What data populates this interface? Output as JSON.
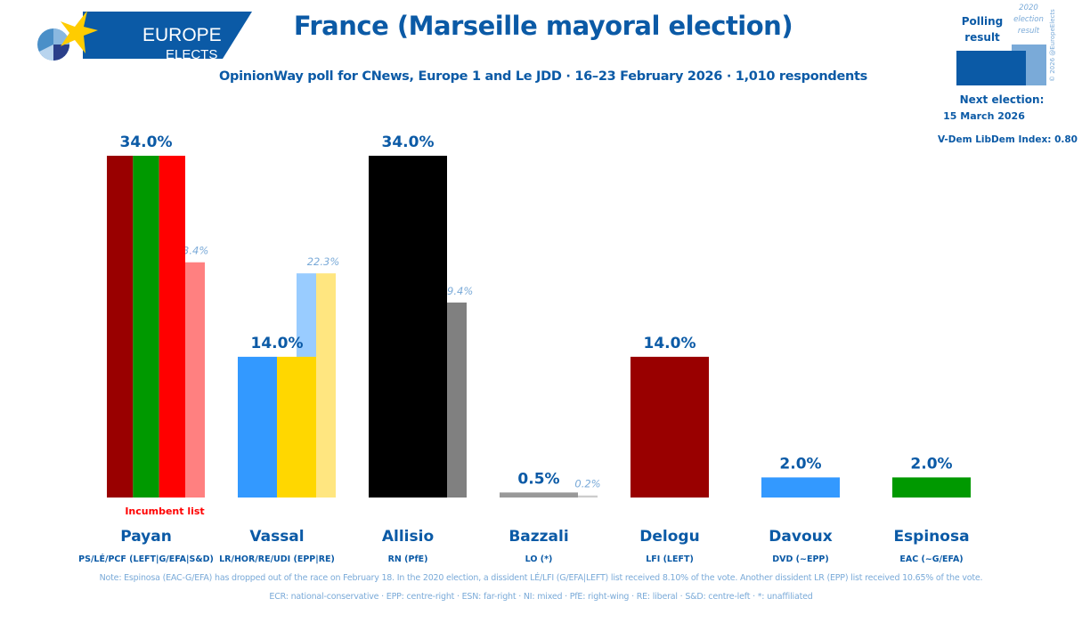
{
  "logo": {
    "line1": "EUROPE",
    "line2": "ELECTS"
  },
  "header": {
    "title": "France (Marseille mayoral election)",
    "subtitle": "OpinionWay poll for CNews, Europe 1 and Le JDD · 16–23 February 2026 · 1,010 respondents"
  },
  "legend": {
    "polling_label": "Polling result",
    "previous_label": "2020 election result",
    "copyright": "© 2026 @EuropeElects",
    "colors": {
      "polling": "#0b5aa6",
      "previous": "#7aaad8"
    }
  },
  "next_election": {
    "label": "Next election:",
    "date": "15 March 2026"
  },
  "vdem": "V-Dem LibDem Index: 0.80",
  "incumbent_label": "Incumbent list",
  "chart_data": {
    "type": "bar",
    "title": "France (Marseille mayoral election)",
    "xlabel": "",
    "ylabel": "",
    "ylim": [
      0,
      34
    ],
    "grid": false,
    "categories": [
      "Payan",
      "Vassal",
      "Allisio",
      "Bazzali",
      "Delogu",
      "Davoux",
      "Espinosa"
    ],
    "parties": [
      "PS/LÉ/PCF (LEFT|G/EFA|S&D)",
      "LR/HOR/RE/UDI (EPP|RE)",
      "RN (PfE)",
      "LO (*)",
      "LFI (LEFT)",
      "DVD (~EPP)",
      "EAC (~G/EFA)"
    ],
    "series": [
      {
        "name": "Polling result",
        "values": [
          34.0,
          14.0,
          34.0,
          0.5,
          14.0,
          2.0,
          2.0
        ],
        "labels": [
          "34.0%",
          "14.0%",
          "34.0%",
          "0.5%",
          "14.0%",
          "2.0%",
          "2.0%"
        ]
      },
      {
        "name": "2020 election result",
        "values": [
          23.4,
          22.3,
          19.4,
          0.2,
          null,
          null,
          null
        ],
        "labels": [
          "23.4%",
          "22.3%",
          "19.4%",
          "0.2%",
          null,
          null,
          null
        ]
      }
    ],
    "bar_colors": [
      [
        "#990000",
        "#009900",
        "#ff0000"
      ],
      [
        "#3399ff",
        "#ffd700"
      ],
      [
        "#000000"
      ],
      [
        "#999999"
      ],
      [
        "#990000"
      ],
      [
        "#3399ff"
      ],
      [
        "#009900"
      ]
    ],
    "prev_colors": [
      [
        "#80c880",
        "#ff8080"
      ],
      [
        "#99ccff",
        "#ffe680"
      ],
      [
        "#808080"
      ],
      [
        "#cccccc"
      ],
      [],
      [],
      []
    ],
    "incumbent_index": 0
  },
  "footer": {
    "note": "Note: Espinosa (EAC-G/EFA) has dropped out of the race on February 18. In the 2020 election, a dissident LÉ/LFI (G/EFA|LEFT) list received 8.10% of the vote. Another dissident LR (EPP) list received 10.65% of the vote.",
    "glossary": "ECR: national-conservative · EPP: centre-right · ESN: far-right · NI: mixed · PfE: right-wing · RE: liberal · S&D: centre-left · *: unaffiliated"
  }
}
